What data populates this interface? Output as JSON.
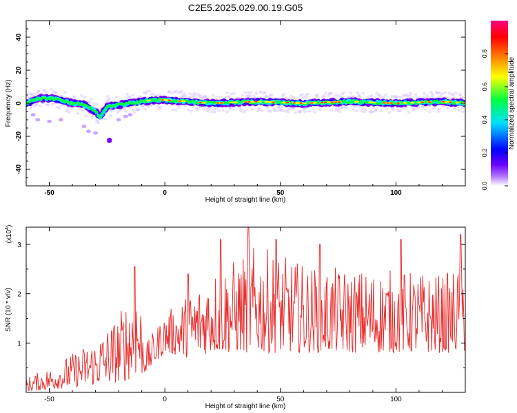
{
  "title": "C2E5.2025.029.00.19.G05",
  "chart_data": [
    {
      "type": "heatmap",
      "xlabel": "Height of straight line (km)",
      "ylabel": "Frequency (Hz)",
      "xlim": [
        -60,
        130
      ],
      "ylim": [
        -50,
        50
      ],
      "xticks": [
        -50,
        0,
        50,
        100
      ],
      "yticks": [
        -40,
        -20,
        0,
        20,
        40
      ],
      "colorbar": {
        "label": "Normalized spectral amplitude",
        "range": [
          0,
          1
        ],
        "ticks": [
          "0.0",
          "0.2",
          "0.4",
          "0.6",
          "0.8"
        ],
        "colors": [
          "#ffffff",
          "#7a00ff",
          "#0000ff",
          "#00ffff",
          "#00ff00",
          "#ffff00",
          "#ff8000",
          "#ff0000",
          "#ff00a0"
        ]
      },
      "ridge": {
        "description_x": [
          -60,
          -55,
          -50,
          -45,
          -40,
          -35,
          -30,
          -28,
          -25,
          -20,
          -15,
          -10,
          -5,
          0,
          10,
          20,
          40,
          60,
          80,
          100,
          120,
          130
        ],
        "center_hz": [
          0,
          3,
          3,
          2,
          0,
          -1,
          -5,
          -8,
          -2,
          -1,
          0,
          1,
          2,
          2,
          1,
          0,
          1,
          0,
          1,
          0,
          1,
          0
        ]
      }
    },
    {
      "type": "line",
      "xlabel": "Height of straight line (km)",
      "ylabel": "SNR (10 * v/v)",
      "multiplier": "(x10",
      "multiplier_exp": "4",
      "xlim": [
        -60,
        130
      ],
      "ylim": [
        0,
        3.35
      ],
      "xticks": [
        -50,
        0,
        50,
        100
      ],
      "yticks": [
        1,
        2,
        3
      ],
      "color": "#e83030",
      "envelope_x": [
        -60,
        -50,
        -40,
        -30,
        -20,
        -12,
        -8,
        0,
        10,
        20,
        30,
        40,
        60,
        80,
        100,
        120,
        130
      ],
      "envelope_low": [
        0.02,
        0.05,
        0.1,
        0.15,
        0.2,
        0.3,
        0.4,
        0.8,
        0.7,
        0.8,
        0.8,
        0.8,
        0.8,
        0.8,
        0.8,
        0.8,
        0.8
      ],
      "envelope_high": [
        0.3,
        0.5,
        0.8,
        1.1,
        1.6,
        2.4,
        1.0,
        1.6,
        2.0,
        2.5,
        2.7,
        3.0,
        2.6,
        2.5,
        2.5,
        2.4,
        2.6
      ],
      "peaks": [
        {
          "x": -13,
          "y": 2.55
        },
        {
          "x": 10,
          "y": 2.4
        },
        {
          "x": 24,
          "y": 3.1
        },
        {
          "x": 36,
          "y": 3.4
        },
        {
          "x": 48,
          "y": 3.1
        },
        {
          "x": 67,
          "y": 3.0
        },
        {
          "x": 102,
          "y": 3.1
        },
        {
          "x": 128,
          "y": 3.2
        }
      ]
    }
  ]
}
